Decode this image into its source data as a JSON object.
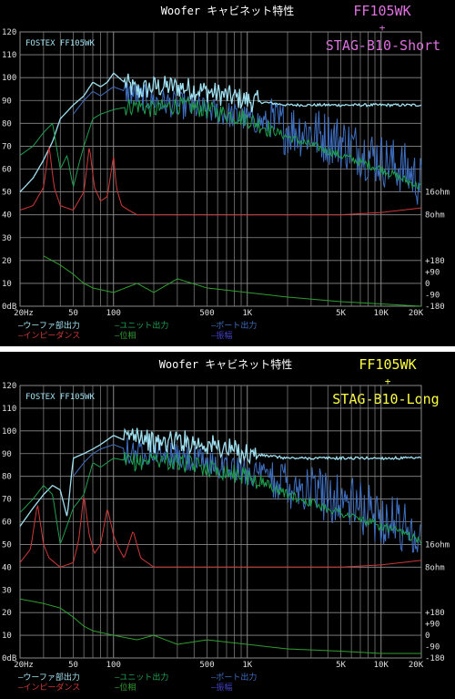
{
  "colors": {
    "background": "#000000",
    "grid": "#8a8a8a",
    "woofer": "#9fe0f0",
    "unit": "#1f9f4f",
    "port": "#3f6fbf",
    "impedance": "#d03838",
    "phase": "#2f9f2f",
    "amplitude": "#4040c0",
    "title_top": "#e070e0",
    "title_bottom": "#ffff40",
    "axis_text": "#e0e0e0",
    "brand": "#a0e0f0"
  },
  "chart_data": [
    {
      "type": "line",
      "title": "Woofer キャビネット特性",
      "model": "FF105WK",
      "plus": "+",
      "cabinet": "STAG-B10-Short",
      "brand_label": "FOSTEX FF105WK",
      "x_scale": "log",
      "xlim": [
        20,
        20000
      ],
      "ylim": [
        0,
        120
      ],
      "grid": true,
      "y_ticks": [
        "120",
        "110",
        "100",
        "90",
        "80",
        "70",
        "60",
        "50",
        "40",
        "30",
        "20",
        "10",
        "0dB"
      ],
      "x_tick_labels": [
        "20Hz",
        "50",
        "100",
        "500",
        "1K",
        "5K",
        "10K",
        "20K"
      ],
      "right_labels": [
        "16ohm",
        "8ohm",
        "+180",
        "+90",
        "0",
        "-90",
        "-180"
      ],
      "legend": [
        "ウーファ部出力",
        "ユニット出力",
        "ポート出力",
        "インピーダンス",
        "位相",
        "振幅"
      ],
      "series": [
        {
          "name": "ウーファ部出力",
          "key": "woofer",
          "x": [
            20,
            25,
            30,
            35,
            40,
            50,
            60,
            70,
            80,
            90,
            100,
            120,
            150,
            200,
            300,
            500,
            700,
            1000,
            2000,
            5000,
            10000,
            20000
          ],
          "y": [
            50,
            56,
            64,
            72,
            82,
            88,
            92,
            98,
            96,
            98,
            102,
            98,
            94,
            96,
            96,
            94,
            92,
            90,
            88,
            88,
            88,
            88
          ]
        },
        {
          "name": "ユニット出力",
          "key": "unit",
          "x": [
            20,
            25,
            30,
            35,
            40,
            45,
            50,
            55,
            60,
            70,
            80,
            100,
            150,
            200,
            300,
            500,
            1000,
            2000,
            5000,
            10000,
            20000
          ],
          "y": [
            66,
            70,
            76,
            80,
            60,
            66,
            52,
            62,
            70,
            82,
            84,
            86,
            88,
            86,
            88,
            86,
            82,
            74,
            66,
            60,
            52
          ]
        },
        {
          "name": "ポート出力",
          "key": "port",
          "x": [
            50,
            60,
            70,
            80,
            100,
            150,
            200,
            300,
            500,
            1000,
            2000,
            3000,
            5000,
            7000,
            10000,
            15000,
            20000
          ],
          "y": [
            84,
            90,
            94,
            92,
            96,
            92,
            90,
            88,
            86,
            82,
            78,
            76,
            72,
            68,
            64,
            60,
            54
          ]
        },
        {
          "name": "インピーダンス",
          "key": "impedance",
          "x": [
            20,
            25,
            30,
            33,
            36,
            40,
            50,
            60,
            66,
            72,
            80,
            90,
            100,
            105,
            115,
            130,
            150,
            200,
            300,
            500,
            1000,
            2000,
            5000,
            10000,
            20000
          ],
          "y": [
            42,
            44,
            52,
            70,
            52,
            44,
            42,
            50,
            70,
            52,
            46,
            48,
            66,
            52,
            44,
            42,
            40,
            40,
            40,
            40,
            40,
            40,
            40,
            41,
            43
          ]
        },
        {
          "name": "位相",
          "key": "phase",
          "x": [
            30,
            40,
            50,
            60,
            70,
            100,
            150,
            200,
            300,
            500,
            1000,
            2000,
            5000,
            10000,
            20000
          ],
          "y": [
            22,
            18,
            14,
            10,
            8,
            6,
            10,
            6,
            12,
            8,
            6,
            4,
            2,
            1,
            0
          ]
        }
      ]
    },
    {
      "type": "line",
      "title": "Woofer キャビネット特性",
      "model": "FF105WK",
      "plus": "+",
      "cabinet": "STAG-B10-Long",
      "brand_label": "FOSTEX FF105WK",
      "x_scale": "log",
      "xlim": [
        20,
        20000
      ],
      "ylim": [
        0,
        120
      ],
      "grid": true,
      "y_ticks": [
        "120",
        "110",
        "100",
        "90",
        "80",
        "70",
        "60",
        "50",
        "40",
        "30",
        "20",
        "10",
        "0dB"
      ],
      "x_tick_labels": [
        "20Hz",
        "50",
        "100",
        "500",
        "1K",
        "5K",
        "10K",
        "20K"
      ],
      "right_labels": [
        "16ohm",
        "8ohm",
        "+180",
        "+90",
        "0",
        "-90",
        "-180"
      ],
      "legend": [
        "ウーファ部出力",
        "ユニット出力",
        "ポート出力",
        "インピーダンス",
        "位相",
        "振幅"
      ],
      "series": [
        {
          "name": "ウーファ部出力",
          "key": "woofer",
          "x": [
            20,
            25,
            30,
            35,
            40,
            45,
            50,
            60,
            70,
            80,
            100,
            120,
            150,
            200,
            300,
            500,
            700,
            1000,
            2000,
            5000,
            10000,
            20000
          ],
          "y": [
            58,
            66,
            72,
            76,
            74,
            62,
            88,
            90,
            92,
            94,
            98,
            96,
            100,
            94,
            96,
            94,
            92,
            90,
            88,
            88,
            88,
            88
          ]
        },
        {
          "name": "ユニット出力",
          "key": "unit",
          "x": [
            20,
            25,
            30,
            35,
            40,
            50,
            60,
            70,
            80,
            100,
            150,
            200,
            300,
            500,
            1000,
            2000,
            5000,
            10000,
            20000
          ],
          "y": [
            64,
            70,
            76,
            72,
            50,
            66,
            72,
            86,
            84,
            88,
            86,
            88,
            86,
            84,
            80,
            72,
            64,
            58,
            52
          ]
        },
        {
          "name": "ポート出力",
          "key": "port",
          "x": [
            50,
            60,
            70,
            80,
            100,
            150,
            200,
            300,
            500,
            1000,
            2000,
            3000,
            5000,
            7000,
            10000,
            15000,
            20000
          ],
          "y": [
            80,
            86,
            90,
            92,
            94,
            90,
            92,
            88,
            86,
            82,
            78,
            74,
            70,
            66,
            62,
            58,
            54
          ]
        },
        {
          "name": "インピーダンス",
          "key": "impedance",
          "x": [
            20,
            24,
            27,
            30,
            33,
            40,
            50,
            55,
            60,
            66,
            72,
            80,
            90,
            100,
            110,
            120,
            140,
            160,
            200,
            300,
            500,
            1000,
            2000,
            5000,
            10000,
            20000
          ],
          "y": [
            42,
            48,
            68,
            50,
            44,
            40,
            42,
            52,
            72,
            54,
            46,
            50,
            66,
            54,
            48,
            44,
            56,
            44,
            40,
            40,
            40,
            40,
            40,
            40,
            41,
            43
          ]
        },
        {
          "name": "位相",
          "key": "phase",
          "x": [
            20,
            30,
            40,
            50,
            60,
            70,
            100,
            150,
            200,
            300,
            500,
            1000,
            2000,
            5000,
            10000,
            20000
          ],
          "y": [
            26,
            24,
            22,
            18,
            14,
            12,
            10,
            8,
            10,
            6,
            8,
            6,
            4,
            3,
            2,
            2
          ]
        }
      ]
    }
  ]
}
